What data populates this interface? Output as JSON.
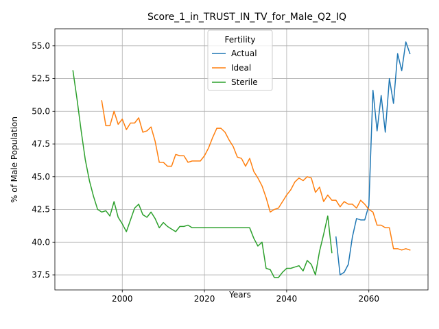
{
  "chart_data": {
    "type": "line",
    "title": "Score_1_in_TRUST_IN_TV_for_Male_Q2_IQ",
    "xlabel": "Years",
    "ylabel": "% of Male Population",
    "xlim": [
      1983.6,
      2074.4
    ],
    "ylim": [
      36.35,
      56.3
    ],
    "xticks": [
      2000,
      2020,
      2040,
      2060
    ],
    "yticks": [
      37.5,
      40.0,
      42.5,
      45.0,
      47.5,
      50.0,
      52.5,
      55.0
    ],
    "xtick_labels": [
      "2000",
      "2020",
      "2040",
      "2060"
    ],
    "ytick_labels": [
      "37.5",
      "40.0",
      "42.5",
      "45.0",
      "47.5",
      "50.0",
      "52.5",
      "55.0"
    ],
    "grid": true,
    "legend": {
      "title": "Fertility",
      "placement": "upper center"
    },
    "series": [
      {
        "name": "Actual",
        "color": "#1f77b4",
        "x": [
          2052,
          2053,
          2054,
          2055,
          2056,
          2057,
          2058,
          2059,
          2060,
          2061,
          2062,
          2063,
          2064,
          2065,
          2066,
          2067,
          2068,
          2069,
          2070
        ],
        "y": [
          40.4,
          37.5,
          37.7,
          38.3,
          40.4,
          41.8,
          41.7,
          41.7,
          42.8,
          51.6,
          48.5,
          51.2,
          48.4,
          52.5,
          50.6,
          54.4,
          53.1,
          55.3,
          54.4
        ]
      },
      {
        "name": "Ideal",
        "color": "#ff7f0e",
        "x": [
          1995,
          1996,
          1997,
          1998,
          1999,
          2000,
          2001,
          2002,
          2003,
          2004,
          2005,
          2006,
          2007,
          2008,
          2009,
          2010,
          2011,
          2012,
          2013,
          2014,
          2015,
          2016,
          2017,
          2018,
          2019,
          2020,
          2021,
          2022,
          2023,
          2024,
          2025,
          2026,
          2027,
          2028,
          2029,
          2030,
          2031,
          2032,
          2033,
          2034,
          2035,
          2036,
          2037,
          2038,
          2039,
          2040,
          2041,
          2042,
          2043,
          2044,
          2045,
          2046,
          2047,
          2048,
          2049,
          2050,
          2051,
          2052,
          2053,
          2054,
          2055,
          2056,
          2057,
          2058,
          2059,
          2060,
          2061,
          2062,
          2063,
          2064,
          2065,
          2066,
          2067,
          2068,
          2069,
          2070
        ],
        "y": [
          50.8,
          48.9,
          48.9,
          50.0,
          49.0,
          49.4,
          48.6,
          49.1,
          49.1,
          49.5,
          48.4,
          48.5,
          48.8,
          47.7,
          46.1,
          46.1,
          45.8,
          45.8,
          46.7,
          46.6,
          46.6,
          46.1,
          46.2,
          46.2,
          46.2,
          46.6,
          47.2,
          48.0,
          48.7,
          48.7,
          48.4,
          47.8,
          47.3,
          46.5,
          46.4,
          45.8,
          46.4,
          45.4,
          44.9,
          44.3,
          43.4,
          42.3,
          42.5,
          42.6,
          43.1,
          43.6,
          44.0,
          44.6,
          44.9,
          44.7,
          45.0,
          44.9,
          43.8,
          44.2,
          43.1,
          43.6,
          43.2,
          43.2,
          42.7,
          43.1,
          42.9,
          42.9,
          42.6,
          43.2,
          42.9,
          42.5,
          42.3,
          41.3,
          41.3,
          41.1,
          41.1,
          39.5,
          39.5,
          39.4,
          39.5,
          39.4
        ]
      },
      {
        "name": "Sterile",
        "color": "#2ca02c",
        "x": [
          1988,
          1989,
          1990,
          1991,
          1992,
          1993,
          1994,
          1995,
          1996,
          1997,
          1998,
          1999,
          2000,
          2001,
          2002,
          2003,
          2004,
          2005,
          2006,
          2007,
          2008,
          2009,
          2010,
          2011,
          2012,
          2013,
          2014,
          2015,
          2016,
          2017,
          2018,
          2019,
          2020,
          2021,
          2022,
          2023,
          2024,
          2025,
          2026,
          2027,
          2028,
          2029,
          2030,
          2031,
          2032,
          2033,
          2034,
          2035,
          2036,
          2037,
          2038,
          2039,
          2040,
          2041,
          2042,
          2043,
          2044,
          2045,
          2046,
          2047,
          2048,
          2049,
          2050,
          2051
        ],
        "y": [
          53.1,
          50.9,
          48.5,
          46.3,
          44.7,
          43.5,
          42.5,
          42.3,
          42.4,
          42.0,
          43.1,
          41.9,
          41.4,
          40.8,
          41.7,
          42.6,
          42.9,
          42.1,
          41.9,
          42.3,
          41.8,
          41.1,
          41.5,
          41.2,
          41.0,
          40.8,
          41.2,
          41.2,
          41.3,
          41.1,
          41.1,
          41.1,
          41.1,
          41.1,
          41.1,
          41.1,
          41.1,
          41.1,
          41.1,
          41.1,
          41.1,
          41.1,
          41.1,
          41.1,
          40.3,
          39.7,
          40.0,
          38.0,
          37.9,
          37.3,
          37.3,
          37.7,
          38.0,
          38.0,
          38.1,
          38.2,
          37.8,
          38.6,
          38.3,
          37.5,
          39.3,
          40.6,
          42.0,
          39.2
        ]
      }
    ]
  }
}
